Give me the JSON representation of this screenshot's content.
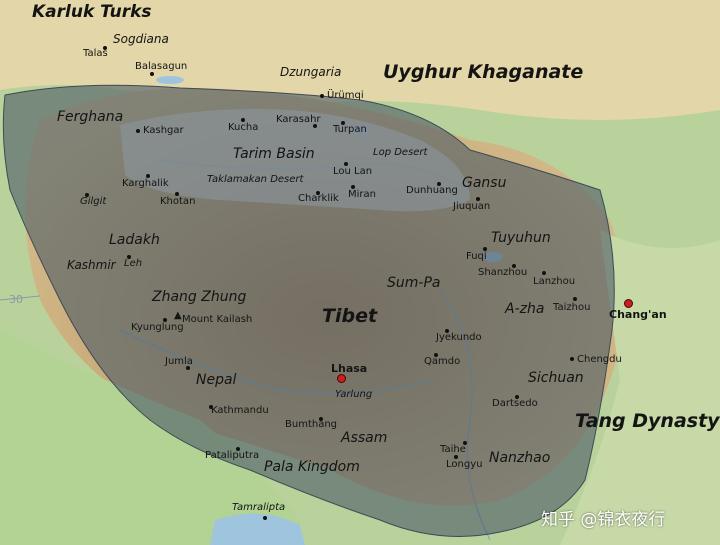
{
  "map": {
    "colors": {
      "tibet_overlay": "#5f6b74",
      "lowland": "#b9d29c",
      "highland": "#c9a876",
      "desert": "#e5d7ae",
      "water": "#9fc4de",
      "capital": "#d21c1c"
    },
    "labels": {
      "karluk": "Karluk Turks",
      "sogdiana": "Sogdiana",
      "talas": "Talas",
      "balasagun": "Balasagun",
      "dzungaria": "Dzungaria",
      "uyghur": "Uyghur Khaganate",
      "urumqi": "Ürümqi",
      "ferghana": "Ferghana",
      "kashgar": "Kashgar",
      "kucha": "Kucha",
      "karasahr": "Karasahr",
      "turpan": "Turpan",
      "tarim": "Tarim Basin",
      "lop_desert": "Lop Desert",
      "loulan": "Lou Lan",
      "karghalik": "Karghalik",
      "taklamakan": "Taklamakan Desert",
      "dunhuang": "Dunhuang",
      "gansu": "Gansu",
      "gilgit": "Gilgit",
      "khotan": "Khotan",
      "charklik": "Charklik",
      "miran": "Miran",
      "jiuquan": "Jiuquan",
      "ladakh": "Ladakh",
      "tuyuhun": "Tuyuhun",
      "fuqi": "Fuqi",
      "kashmir": "Kashmir",
      "leh": "Leh",
      "shanzhou": "Shanzhou",
      "lanzhou": "Lanzhou",
      "sumpa": "Sum-Pa",
      "zhangzhung": "Zhang Zhung",
      "tibet": "Tibet",
      "azha": "A-zha",
      "taizhou": "Taizhou",
      "changan": "Chang'an",
      "kyunglung": "Kyunglung",
      "kailash": "Mount Kailash",
      "jyekundo": "Jyekundo",
      "chengdu": "Chengdu",
      "jumla": "Jumla",
      "lhasa": "Lhasa",
      "qamdo": "Qamdo",
      "sichuan": "Sichuan",
      "nepal": "Nepal",
      "yarlung": "Yarlung",
      "dartsedo": "Dartsedo",
      "kathmandu": "Kathmandu",
      "tang": "Tang Dynasty",
      "bumthang": "Bumthang",
      "assam": "Assam",
      "taihe": "Taihe",
      "pataliputra": "Pataliputra",
      "pala": "Pala Kingdom",
      "longyu": "Longyu",
      "nanzhao": "Nanzhao",
      "tamralipta": "Tamralipta",
      "graticule_30": "30"
    },
    "icons": {
      "city": "black-dot",
      "capital": "red-dot",
      "mountain": "triangle"
    }
  },
  "watermark": "知乎 @锦衣夜行"
}
